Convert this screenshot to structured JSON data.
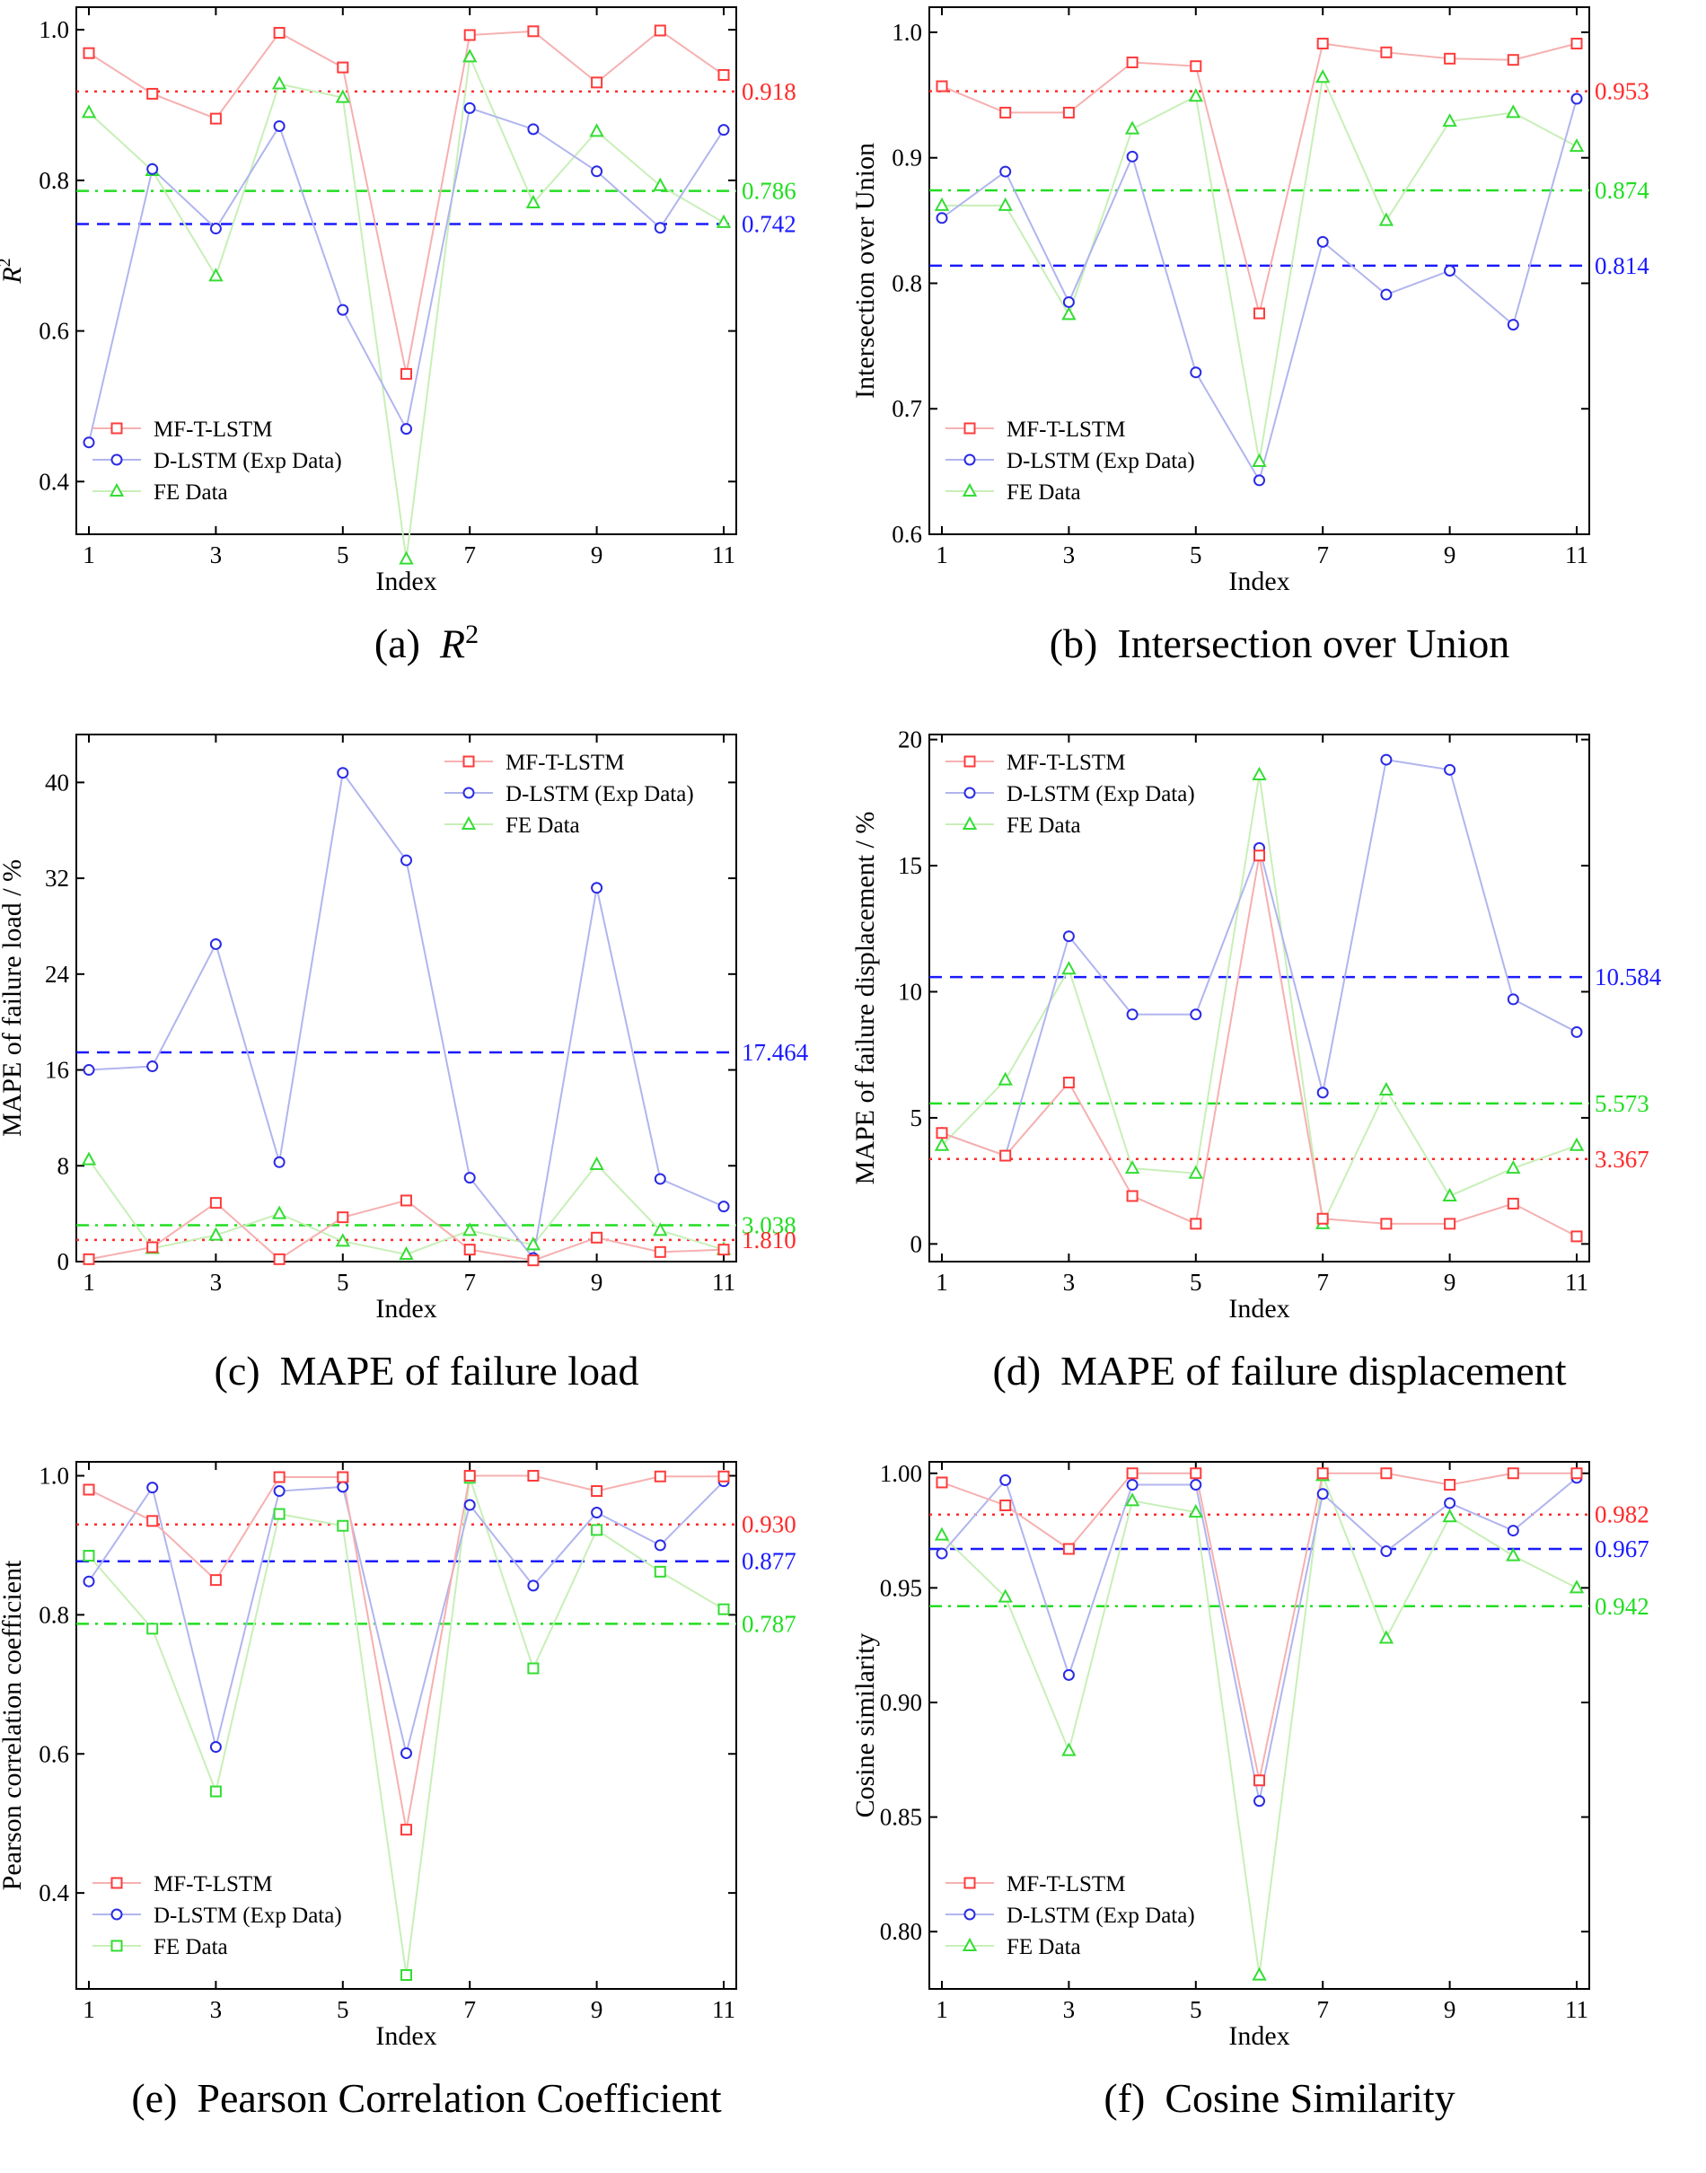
{
  "colors": {
    "mf": "#ff3b3b",
    "mf_line": "#f6b0b0",
    "dl": "#2a2ae6",
    "dl_line": "#b1b5ee",
    "fe": "#33dd33",
    "fe_line": "#c8efb8",
    "ref_red": "#ff2a2a",
    "ref_blue": "#1a1aff",
    "ref_green": "#22dd22"
  },
  "legend": {
    "mf": "MF-T-LSTM",
    "dl": "D-LSTM (Exp Data)",
    "fe": "FE Data"
  },
  "charts": [
    {
      "id": "a",
      "caption_letter": "(a)",
      "caption_main": "R",
      "caption_sup": "2",
      "ylabel": "R",
      "ylabel_sup": "2",
      "xlabel": "Index",
      "ylim": [
        0.33,
        1.03
      ],
      "yticks": [
        "0.4",
        "0.6",
        "0.8",
        "1.0"
      ],
      "xticks": [
        "1",
        "3",
        "5",
        "7",
        "9",
        "11"
      ],
      "legend_pos": "bottom-left",
      "fe_marker": "triangle",
      "mf": [
        0.969,
        0.915,
        0.882,
        0.996,
        0.95,
        0.543,
        0.993,
        0.998,
        0.93,
        0.999,
        0.94
      ],
      "dl": [
        0.452,
        0.815,
        0.736,
        0.872,
        0.628,
        0.47,
        0.896,
        0.868,
        0.812,
        0.737,
        0.867
      ],
      "fe": [
        0.89,
        0.813,
        0.673,
        0.928,
        0.91,
        0.297,
        0.964,
        0.77,
        0.865,
        0.793,
        0.744
      ],
      "refs": [
        {
          "value": 0.918,
          "label": "0.918",
          "color": "#ff2a2a",
          "dash": "dot"
        },
        {
          "value": 0.786,
          "label": "0.786",
          "color": "#22dd22",
          "dash": "dashdot"
        },
        {
          "value": 0.742,
          "label": "0.742",
          "color": "#1a1aff",
          "dash": "dash"
        }
      ]
    },
    {
      "id": "b",
      "caption_letter": "(b)",
      "caption_main": "Intersection over Union",
      "caption_sup": "",
      "ylabel": "Intersection over Union",
      "ylabel_sup": "",
      "xlabel": "Index",
      "ylim": [
        0.6,
        1.02
      ],
      "yticks": [
        "0.6",
        "0.7",
        "0.8",
        "0.9",
        "1.0"
      ],
      "xticks": [
        "1",
        "3",
        "5",
        "7",
        "9",
        "11"
      ],
      "legend_pos": "bottom-left",
      "fe_marker": "triangle",
      "mf": [
        0.957,
        0.936,
        0.936,
        0.976,
        0.973,
        0.776,
        0.991,
        0.984,
        0.979,
        0.978,
        0.991
      ],
      "dl": [
        0.852,
        0.889,
        0.785,
        0.901,
        0.729,
        0.643,
        0.833,
        0.791,
        0.81,
        0.767,
        0.947
      ],
      "fe": [
        0.862,
        0.862,
        0.775,
        0.923,
        0.949,
        0.658,
        0.964,
        0.85,
        0.929,
        0.936,
        0.909
      ],
      "refs": [
        {
          "value": 0.953,
          "label": "0.953",
          "color": "#ff2a2a",
          "dash": "dot"
        },
        {
          "value": 0.874,
          "label": "0.874",
          "color": "#22dd22",
          "dash": "dashdot"
        },
        {
          "value": 0.814,
          "label": "0.814",
          "color": "#1a1aff",
          "dash": "dash"
        }
      ]
    },
    {
      "id": "c",
      "caption_letter": "(c)",
      "caption_main": "MAPE of failure load",
      "caption_sup": "",
      "ylabel": "MAPE of failure load / %",
      "ylabel_sup": "",
      "xlabel": "Index",
      "ylim": [
        0,
        44
      ],
      "yticks": [
        "0",
        "8",
        "16",
        "24",
        "32",
        "40"
      ],
      "xticks": [
        "1",
        "3",
        "5",
        "7",
        "9",
        "11"
      ],
      "legend_pos": "top-right",
      "fe_marker": "triangle",
      "mf": [
        0.2,
        1.2,
        4.9,
        0.2,
        3.7,
        5.1,
        1.0,
        0.1,
        2.0,
        0.8,
        1.0
      ],
      "dl": [
        16.0,
        16.3,
        26.5,
        8.3,
        40.8,
        33.5,
        7.0,
        0.3,
        31.2,
        6.9,
        4.6
      ],
      "fe": [
        8.5,
        1.1,
        2.2,
        4.0,
        1.7,
        0.6,
        2.6,
        1.4,
        8.1,
        2.6,
        1.0
      ],
      "refs": [
        {
          "value": 17.464,
          "label": "17.464",
          "color": "#1a1aff",
          "dash": "dash"
        },
        {
          "value": 3.038,
          "label": "3.038",
          "color": "#22dd22",
          "dash": "dashdot"
        },
        {
          "value": 1.81,
          "label": "1.810",
          "color": "#ff2a2a",
          "dash": "dot"
        }
      ]
    },
    {
      "id": "d",
      "caption_letter": "(d)",
      "caption_main": "MAPE of failure displacement",
      "caption_sup": "",
      "ylabel": "MAPE of failure displacement / %",
      "ylabel_sup": "",
      "xlabel": "Index",
      "ylim": [
        -0.7,
        20.2
      ],
      "yticks": [
        "0",
        "5",
        "10",
        "15",
        "20"
      ],
      "xticks": [
        "1",
        "3",
        "5",
        "7",
        "9",
        "11"
      ],
      "legend_pos": "top-left",
      "fe_marker": "triangle",
      "mf": [
        4.4,
        3.5,
        6.4,
        1.9,
        0.8,
        15.4,
        1.0,
        0.8,
        0.8,
        1.6,
        0.3
      ],
      "dl": [
        4.4,
        3.5,
        12.2,
        9.1,
        9.1,
        15.7,
        6.0,
        19.2,
        18.8,
        9.7,
        8.4
      ],
      "fe": [
        3.9,
        6.5,
        10.9,
        3.0,
        2.8,
        18.6,
        0.8,
        6.1,
        1.9,
        3.0,
        3.9
      ],
      "refs": [
        {
          "value": 10.584,
          "label": "10.584",
          "color": "#1a1aff",
          "dash": "dash"
        },
        {
          "value": 5.573,
          "label": "5.573",
          "color": "#22dd22",
          "dash": "dashdot"
        },
        {
          "value": 3.367,
          "label": "3.367",
          "color": "#ff2a2a",
          "dash": "dot"
        }
      ]
    },
    {
      "id": "e",
      "caption_letter": "(e)",
      "caption_main": "Pearson Correlation Coefficient",
      "caption_sup": "",
      "ylabel": "Pearson correlation coefficient",
      "ylabel_sup": "",
      "xlabel": "Index",
      "ylim": [
        0.262,
        1.02
      ],
      "yticks": [
        "0.4",
        "0.6",
        "0.8",
        "1.0"
      ],
      "xticks": [
        "1",
        "3",
        "5",
        "7",
        "9",
        "11"
      ],
      "legend_pos": "bottom-left",
      "fe_marker": "square",
      "mf": [
        0.98,
        0.935,
        0.85,
        0.998,
        0.998,
        0.491,
        1.0,
        1.0,
        0.978,
        0.999,
        0.999
      ],
      "dl": [
        0.848,
        0.983,
        0.61,
        0.978,
        0.984,
        0.601,
        0.958,
        0.842,
        0.947,
        0.9,
        0.992
      ],
      "fe": [
        0.885,
        0.78,
        0.546,
        0.945,
        0.928,
        0.282,
        0.997,
        0.723,
        0.922,
        0.862,
        0.808
      ],
      "refs": [
        {
          "value": 0.93,
          "label": "0.930",
          "color": "#ff2a2a",
          "dash": "dot"
        },
        {
          "value": 0.877,
          "label": "0.877",
          "color": "#1a1aff",
          "dash": "dash"
        },
        {
          "value": 0.787,
          "label": "0.787",
          "color": "#22dd22",
          "dash": "dashdot"
        }
      ]
    },
    {
      "id": "f",
      "caption_letter": "(f)",
      "caption_main": "Cosine Similarity",
      "caption_sup": "",
      "ylabel": "Cosine similarity",
      "ylabel_sup": "",
      "xlabel": "Index",
      "ylim": [
        0.775,
        1.005
      ],
      "yticks": [
        "0.80",
        "0.85",
        "0.90",
        "0.95",
        "1.00"
      ],
      "xticks": [
        "1",
        "3",
        "5",
        "7",
        "9",
        "11"
      ],
      "legend_pos": "bottom-left",
      "fe_marker": "triangle",
      "mf": [
        0.996,
        0.986,
        0.967,
        1.0,
        1.0,
        0.866,
        1.0,
        1.0,
        0.995,
        1.0,
        1.0
      ],
      "dl": [
        0.965,
        0.997,
        0.912,
        0.995,
        0.995,
        0.857,
        0.991,
        0.966,
        0.987,
        0.975,
        0.998
      ],
      "fe": [
        0.973,
        0.946,
        0.879,
        0.988,
        0.983,
        0.781,
        0.999,
        0.928,
        0.981,
        0.964,
        0.95
      ],
      "refs": [
        {
          "value": 0.982,
          "label": "0.982",
          "color": "#ff2a2a",
          "dash": "dot"
        },
        {
          "value": 0.967,
          "label": "0.967",
          "color": "#1a1aff",
          "dash": "dash"
        },
        {
          "value": 0.942,
          "label": "0.942",
          "color": "#22dd22",
          "dash": "dashdot"
        }
      ]
    }
  ]
}
